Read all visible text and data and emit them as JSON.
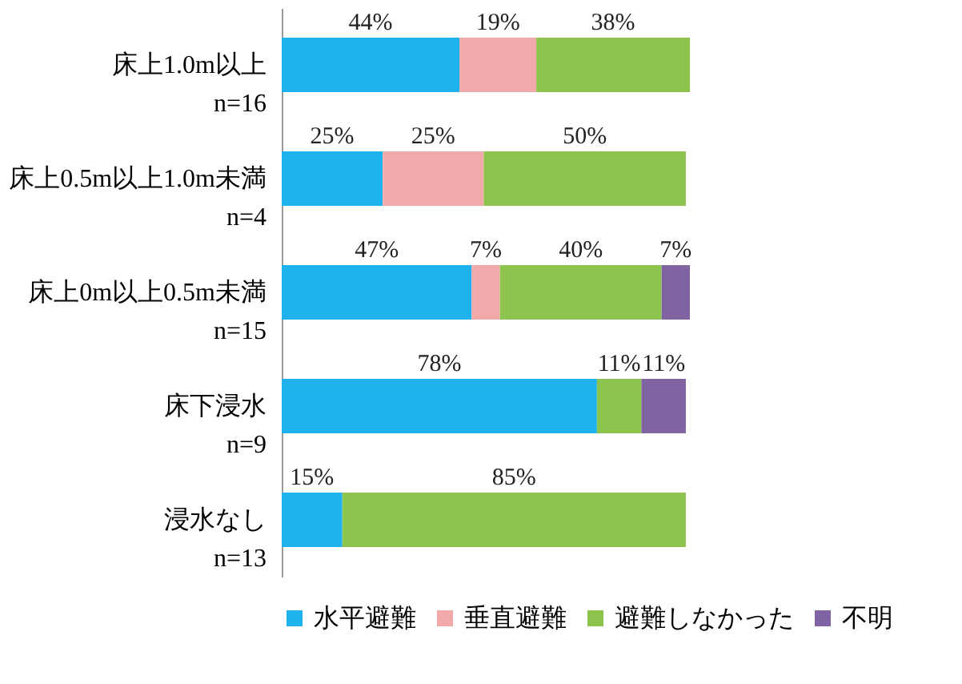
{
  "chart_data": {
    "type": "bar",
    "orientation": "horizontal",
    "stacked": true,
    "legend": "bottom",
    "grid": false,
    "tick_labels": "y",
    "categories": [
      "床上1.0m以上\nn=16",
      "床上0.5m以上1.0m未満\nn=4",
      "床上0m以上0.5m未満\nn=15",
      "床下浸水\nn=9",
      "浸水なし\nn=13"
    ],
    "series": [
      {
        "name": "水平避難",
        "color": "#1fb2ef",
        "values": [
          44,
          25,
          47,
          78,
          15
        ],
        "value_labels": [
          "44%",
          "25%",
          "47%",
          "78%",
          "15%"
        ]
      },
      {
        "name": "垂直避難",
        "color": "#f2a9a9",
        "values": [
          19,
          25,
          7,
          null,
          null
        ],
        "value_labels": [
          "19%",
          "25%",
          "7%",
          null,
          null
        ]
      },
      {
        "name": "避難しなかった",
        "color": "#8dc44e",
        "values": [
          38,
          50,
          40,
          11,
          85
        ],
        "value_labels": [
          "38%",
          "50%",
          "40%",
          "11%",
          "85%"
        ]
      },
      {
        "name": "不明",
        "color": "#8064a2",
        "values": [
          null,
          null,
          7,
          11,
          null
        ],
        "value_labels": [
          null,
          null,
          "7%",
          "11%",
          null
        ]
      }
    ]
  }
}
